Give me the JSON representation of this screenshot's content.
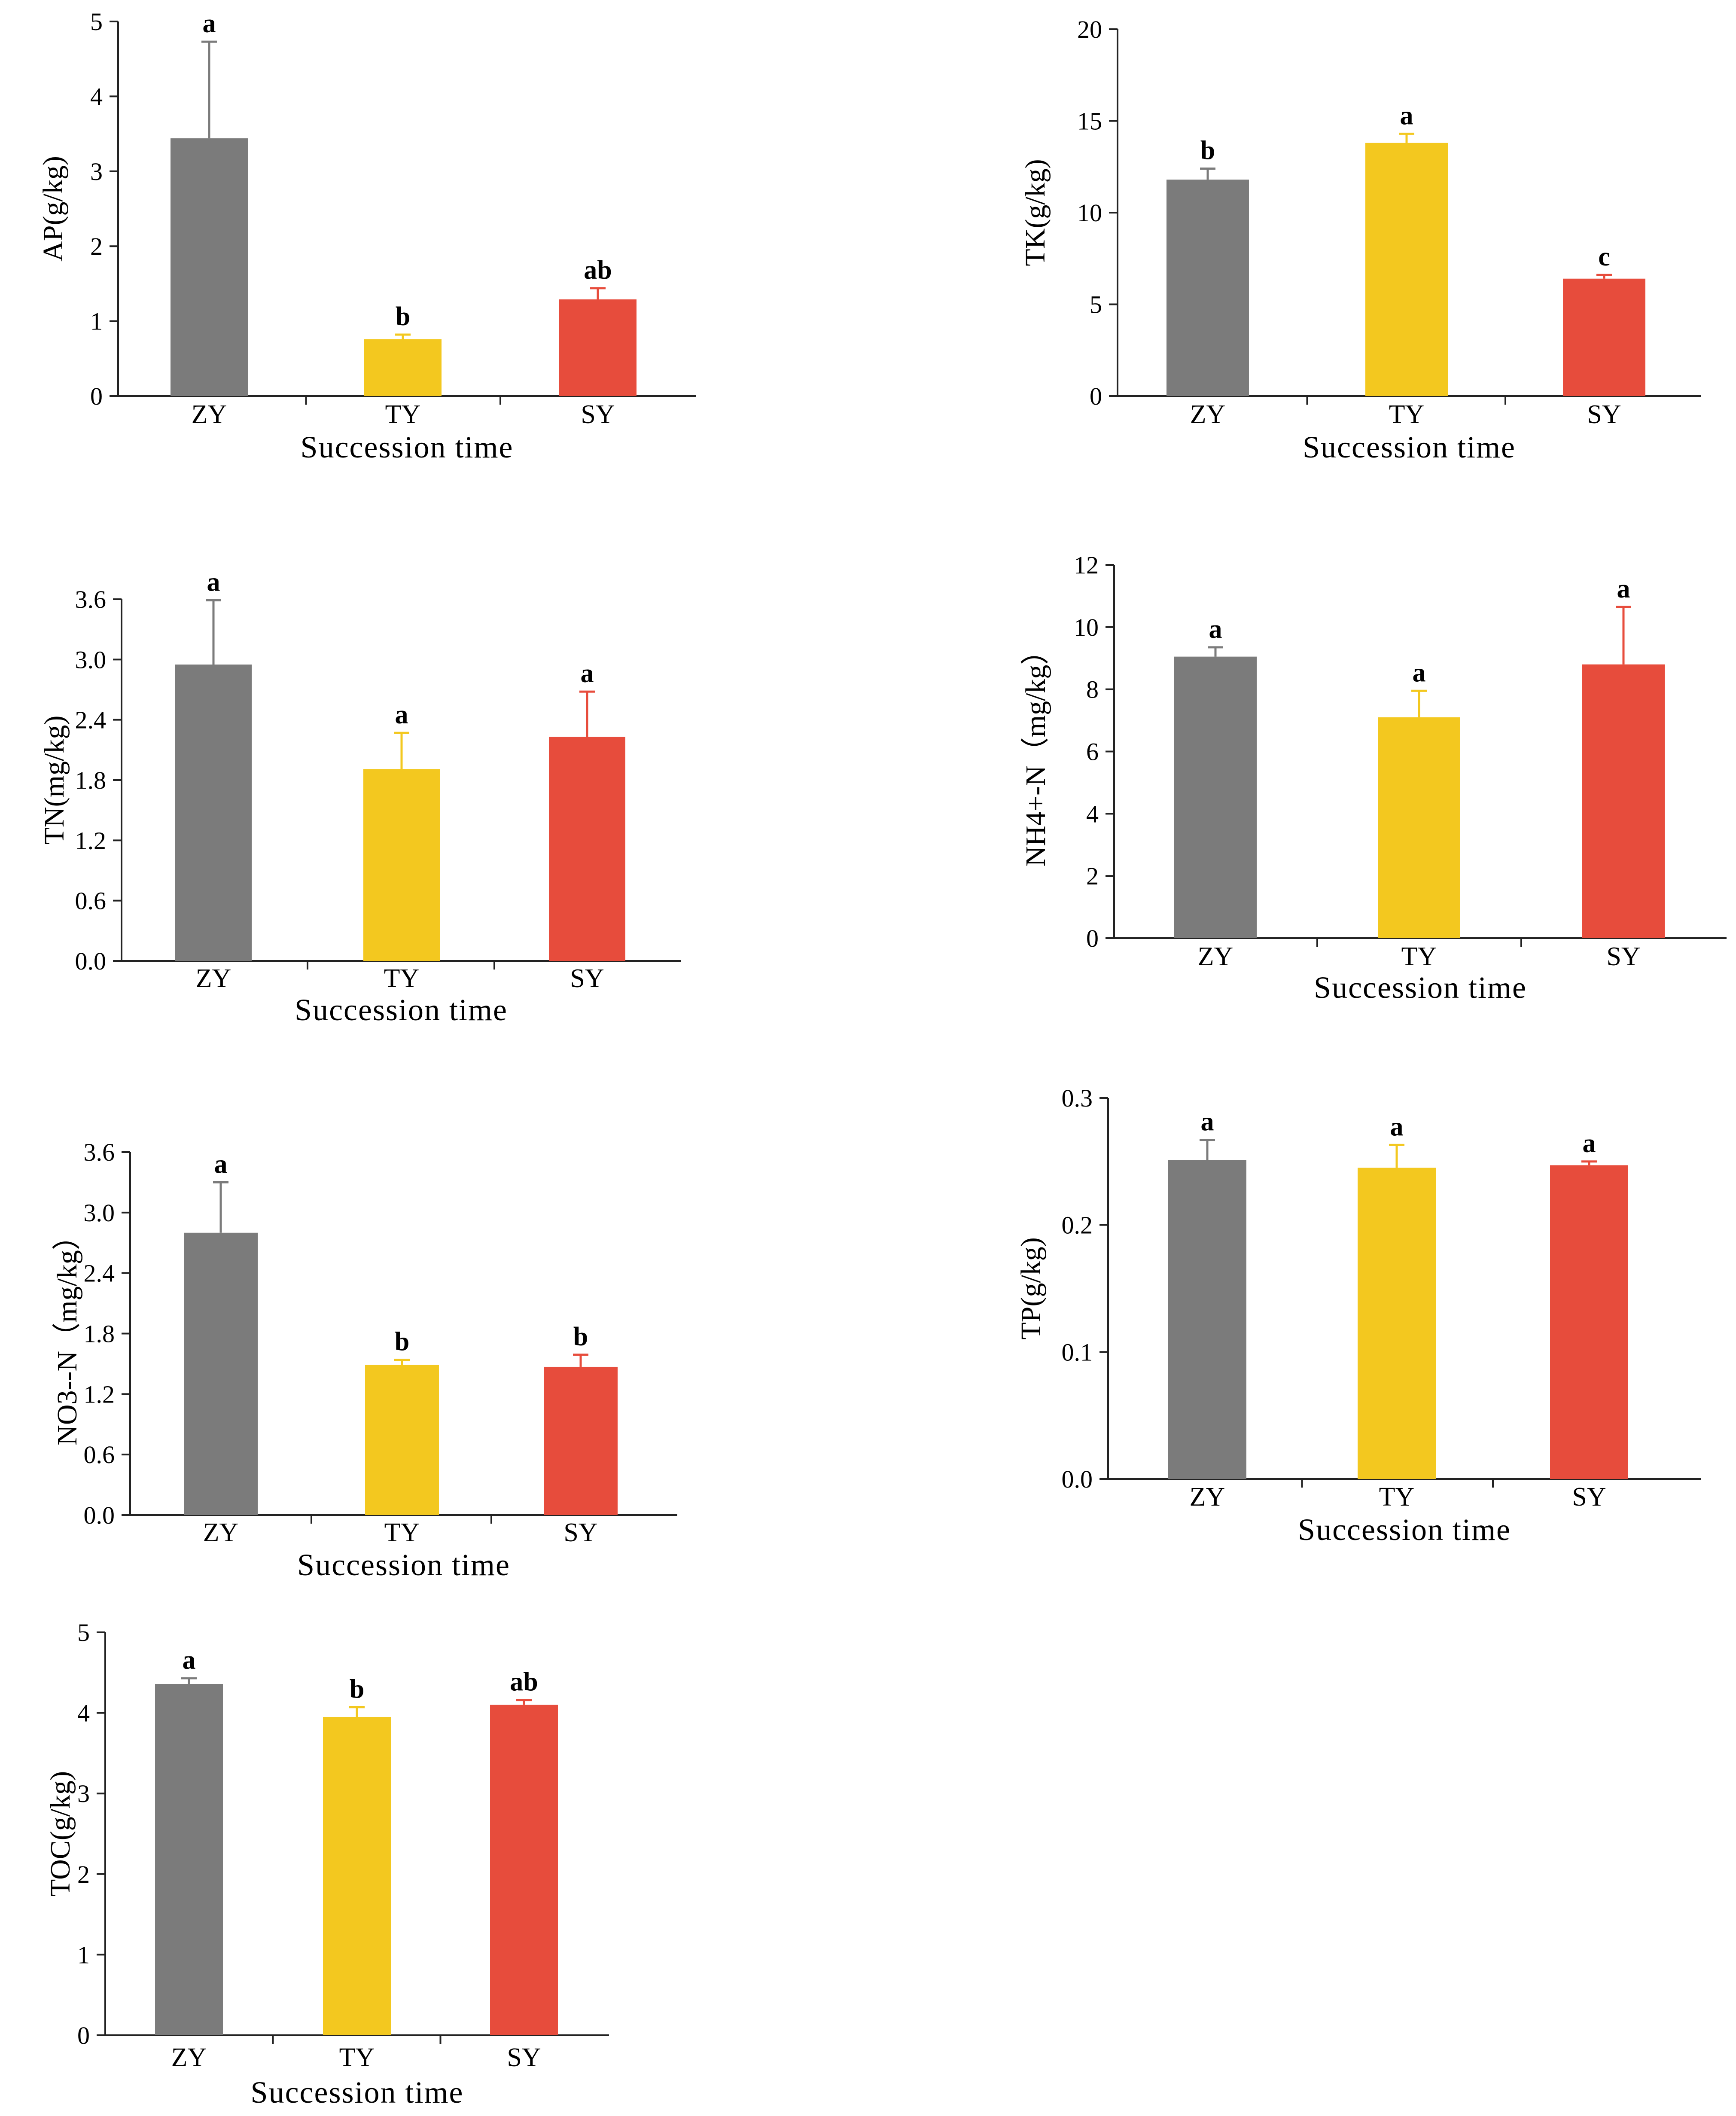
{
  "colors": {
    "ZY": "#7b7b7b",
    "TY": "#f3c81f",
    "SY": "#e74c3c"
  },
  "chart_data": [
    {
      "type": "bar",
      "id": "AP",
      "title": "",
      "xlabel": "Succession time",
      "ylabel": "AP(g/kg)",
      "categories": [
        "ZY",
        "TY",
        "SY"
      ],
      "values": [
        3.44,
        0.76,
        1.29
      ],
      "errors": [
        1.29,
        0.06,
        0.15
      ],
      "letters": [
        "a",
        "b",
        "ab"
      ],
      "ylim": [
        0,
        5
      ],
      "yticks": [
        "0",
        "1",
        "2",
        "3",
        "4",
        "5"
      ]
    },
    {
      "type": "bar",
      "id": "TK",
      "title": "",
      "xlabel": "Succession time",
      "ylabel": "TK(g/kg)",
      "categories": [
        "ZY",
        "TY",
        "SY"
      ],
      "values": [
        11.8,
        13.8,
        6.4
      ],
      "errors": [
        0.6,
        0.5,
        0.2
      ],
      "letters": [
        "b",
        "a",
        "c"
      ],
      "ylim": [
        0,
        20
      ],
      "yticks": [
        "0",
        "5",
        "10",
        "15",
        "20"
      ]
    },
    {
      "type": "bar",
      "id": "TN",
      "title": "",
      "xlabel": "Succession time",
      "ylabel": "TN(mg/kg)",
      "categories": [
        "ZY",
        "TY",
        "SY"
      ],
      "values": [
        2.95,
        1.91,
        2.23
      ],
      "errors": [
        0.64,
        0.36,
        0.45
      ],
      "letters": [
        "a",
        "a",
        "a"
      ],
      "ylim": [
        0,
        3.6
      ],
      "yticks": [
        "0.0",
        "0.6",
        "1.2",
        "1.8",
        "2.4",
        "3.0",
        "3.6"
      ]
    },
    {
      "type": "bar",
      "id": "NH4",
      "title": "",
      "xlabel": "Succession time",
      "ylabel": "NH4+-N（mg/kg）",
      "categories": [
        "ZY",
        "TY",
        "SY"
      ],
      "values": [
        9.05,
        7.1,
        8.8
      ],
      "errors": [
        0.3,
        0.85,
        1.85
      ],
      "letters": [
        "a",
        "a",
        "a"
      ],
      "ylim": [
        0,
        12
      ],
      "yticks": [
        "0",
        "2",
        "4",
        "6",
        "8",
        "10",
        "12"
      ]
    },
    {
      "type": "bar",
      "id": "NO3",
      "title": "",
      "xlabel": "Succession time",
      "ylabel": "NO3--N（mg/kg）",
      "categories": [
        "ZY",
        "TY",
        "SY"
      ],
      "values": [
        2.8,
        1.49,
        1.47
      ],
      "errors": [
        0.5,
        0.05,
        0.12
      ],
      "letters": [
        "a",
        "b",
        "b"
      ],
      "ylim": [
        0,
        3.6
      ],
      "yticks": [
        "0.0",
        "0.6",
        "1.2",
        "1.8",
        "2.4",
        "3.0",
        "3.6"
      ]
    },
    {
      "type": "bar",
      "id": "TP",
      "title": "",
      "xlabel": "Succession time",
      "ylabel": "TP(g/kg)",
      "categories": [
        "ZY",
        "TY",
        "SY"
      ],
      "values": [
        0.251,
        0.245,
        0.247
      ],
      "errors": [
        0.016,
        0.018,
        0.003
      ],
      "letters": [
        "a",
        "a",
        "a"
      ],
      "ylim": [
        0,
        0.3
      ],
      "yticks": [
        "0.0",
        "0.1",
        "0.2",
        "0.3"
      ]
    },
    {
      "type": "bar",
      "id": "TOC",
      "title": "",
      "xlabel": "Succession time",
      "ylabel": "TOC(g/kg)",
      "categories": [
        "ZY",
        "TY",
        "SY"
      ],
      "values": [
        4.36,
        3.95,
        4.1
      ],
      "errors": [
        0.07,
        0.12,
        0.06
      ],
      "letters": [
        "a",
        "b",
        "ab"
      ],
      "ylim": [
        0,
        5
      ],
      "yticks": [
        "0",
        "1",
        "2",
        "3",
        "4",
        "5"
      ]
    }
  ]
}
